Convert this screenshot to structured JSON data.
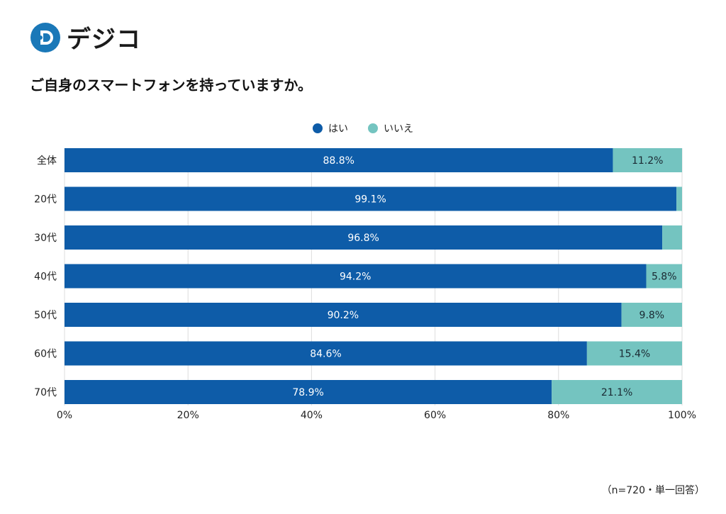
{
  "logo": {
    "text": "デジコ",
    "mark": "D"
  },
  "chart_data": {
    "type": "bar",
    "orientation": "horizontal",
    "stacked": true,
    "title": "ご自身のスマートフォンを持っていますか。",
    "categories": [
      "全体",
      "20代",
      "30代",
      "40代",
      "50代",
      "60代",
      "70代"
    ],
    "series": [
      {
        "name": "はい",
        "color": "#0e5ca8",
        "values": [
          88.8,
          99.1,
          96.8,
          94.2,
          90.2,
          84.6,
          78.9
        ],
        "labels": [
          "88.8%",
          "99.1%",
          "96.8%",
          "94.2%",
          "90.2%",
          "84.6%",
          "78.9%"
        ]
      },
      {
        "name": "いいえ",
        "color": "#74c4c0",
        "values": [
          11.2,
          0.9,
          3.2,
          5.8,
          9.8,
          15.4,
          21.1
        ],
        "labels": [
          "11.2%",
          null,
          null,
          "5.8%",
          "9.8%",
          "15.4%",
          "21.1%"
        ]
      }
    ],
    "xlim": [
      0,
      100
    ],
    "xticks": [
      "0%",
      "20%",
      "40%",
      "60%",
      "80%",
      "100%"
    ],
    "grid": true,
    "legend": "top-center"
  },
  "footer": "（n=720・単一回答）"
}
